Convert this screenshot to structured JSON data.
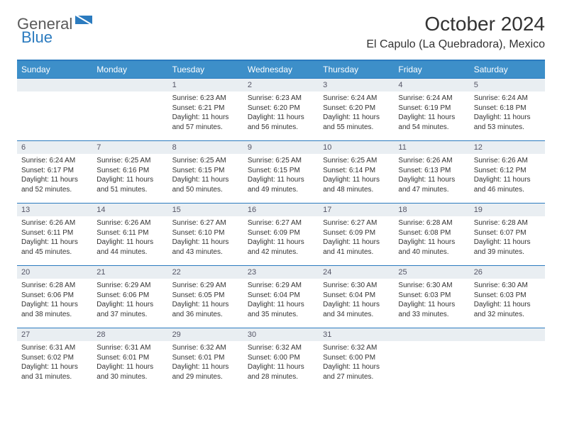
{
  "brand": {
    "general": "General",
    "blue": "Blue"
  },
  "title": "October 2024",
  "location": "El Capulo (La Quebradora), Mexico",
  "colors": {
    "header_bg": "#3d8fc9",
    "rule": "#2b7bbf",
    "daynum_bg": "#e9eef2",
    "text": "#333333"
  },
  "weekdays": [
    "Sunday",
    "Monday",
    "Tuesday",
    "Wednesday",
    "Thursday",
    "Friday",
    "Saturday"
  ],
  "font": {
    "title_size": 28,
    "location_size": 16,
    "header_size": 12,
    "body_size": 10
  },
  "leading_blanks": 2,
  "days": [
    {
      "n": 1,
      "sunrise": "6:23 AM",
      "sunset": "6:21 PM",
      "daylight": "11 hours and 57 minutes."
    },
    {
      "n": 2,
      "sunrise": "6:23 AM",
      "sunset": "6:20 PM",
      "daylight": "11 hours and 56 minutes."
    },
    {
      "n": 3,
      "sunrise": "6:24 AM",
      "sunset": "6:20 PM",
      "daylight": "11 hours and 55 minutes."
    },
    {
      "n": 4,
      "sunrise": "6:24 AM",
      "sunset": "6:19 PM",
      "daylight": "11 hours and 54 minutes."
    },
    {
      "n": 5,
      "sunrise": "6:24 AM",
      "sunset": "6:18 PM",
      "daylight": "11 hours and 53 minutes."
    },
    {
      "n": 6,
      "sunrise": "6:24 AM",
      "sunset": "6:17 PM",
      "daylight": "11 hours and 52 minutes."
    },
    {
      "n": 7,
      "sunrise": "6:25 AM",
      "sunset": "6:16 PM",
      "daylight": "11 hours and 51 minutes."
    },
    {
      "n": 8,
      "sunrise": "6:25 AM",
      "sunset": "6:15 PM",
      "daylight": "11 hours and 50 minutes."
    },
    {
      "n": 9,
      "sunrise": "6:25 AM",
      "sunset": "6:15 PM",
      "daylight": "11 hours and 49 minutes."
    },
    {
      "n": 10,
      "sunrise": "6:25 AM",
      "sunset": "6:14 PM",
      "daylight": "11 hours and 48 minutes."
    },
    {
      "n": 11,
      "sunrise": "6:26 AM",
      "sunset": "6:13 PM",
      "daylight": "11 hours and 47 minutes."
    },
    {
      "n": 12,
      "sunrise": "6:26 AM",
      "sunset": "6:12 PM",
      "daylight": "11 hours and 46 minutes."
    },
    {
      "n": 13,
      "sunrise": "6:26 AM",
      "sunset": "6:11 PM",
      "daylight": "11 hours and 45 minutes."
    },
    {
      "n": 14,
      "sunrise": "6:26 AM",
      "sunset": "6:11 PM",
      "daylight": "11 hours and 44 minutes."
    },
    {
      "n": 15,
      "sunrise": "6:27 AM",
      "sunset": "6:10 PM",
      "daylight": "11 hours and 43 minutes."
    },
    {
      "n": 16,
      "sunrise": "6:27 AM",
      "sunset": "6:09 PM",
      "daylight": "11 hours and 42 minutes."
    },
    {
      "n": 17,
      "sunrise": "6:27 AM",
      "sunset": "6:09 PM",
      "daylight": "11 hours and 41 minutes."
    },
    {
      "n": 18,
      "sunrise": "6:28 AM",
      "sunset": "6:08 PM",
      "daylight": "11 hours and 40 minutes."
    },
    {
      "n": 19,
      "sunrise": "6:28 AM",
      "sunset": "6:07 PM",
      "daylight": "11 hours and 39 minutes."
    },
    {
      "n": 20,
      "sunrise": "6:28 AM",
      "sunset": "6:06 PM",
      "daylight": "11 hours and 38 minutes."
    },
    {
      "n": 21,
      "sunrise": "6:29 AM",
      "sunset": "6:06 PM",
      "daylight": "11 hours and 37 minutes."
    },
    {
      "n": 22,
      "sunrise": "6:29 AM",
      "sunset": "6:05 PM",
      "daylight": "11 hours and 36 minutes."
    },
    {
      "n": 23,
      "sunrise": "6:29 AM",
      "sunset": "6:04 PM",
      "daylight": "11 hours and 35 minutes."
    },
    {
      "n": 24,
      "sunrise": "6:30 AM",
      "sunset": "6:04 PM",
      "daylight": "11 hours and 34 minutes."
    },
    {
      "n": 25,
      "sunrise": "6:30 AM",
      "sunset": "6:03 PM",
      "daylight": "11 hours and 33 minutes."
    },
    {
      "n": 26,
      "sunrise": "6:30 AM",
      "sunset": "6:03 PM",
      "daylight": "11 hours and 32 minutes."
    },
    {
      "n": 27,
      "sunrise": "6:31 AM",
      "sunset": "6:02 PM",
      "daylight": "11 hours and 31 minutes."
    },
    {
      "n": 28,
      "sunrise": "6:31 AM",
      "sunset": "6:01 PM",
      "daylight": "11 hours and 30 minutes."
    },
    {
      "n": 29,
      "sunrise": "6:32 AM",
      "sunset": "6:01 PM",
      "daylight": "11 hours and 29 minutes."
    },
    {
      "n": 30,
      "sunrise": "6:32 AM",
      "sunset": "6:00 PM",
      "daylight": "11 hours and 28 minutes."
    },
    {
      "n": 31,
      "sunrise": "6:32 AM",
      "sunset": "6:00 PM",
      "daylight": "11 hours and 27 minutes."
    }
  ],
  "labels": {
    "sunrise": "Sunrise:",
    "sunset": "Sunset:",
    "daylight": "Daylight:"
  }
}
